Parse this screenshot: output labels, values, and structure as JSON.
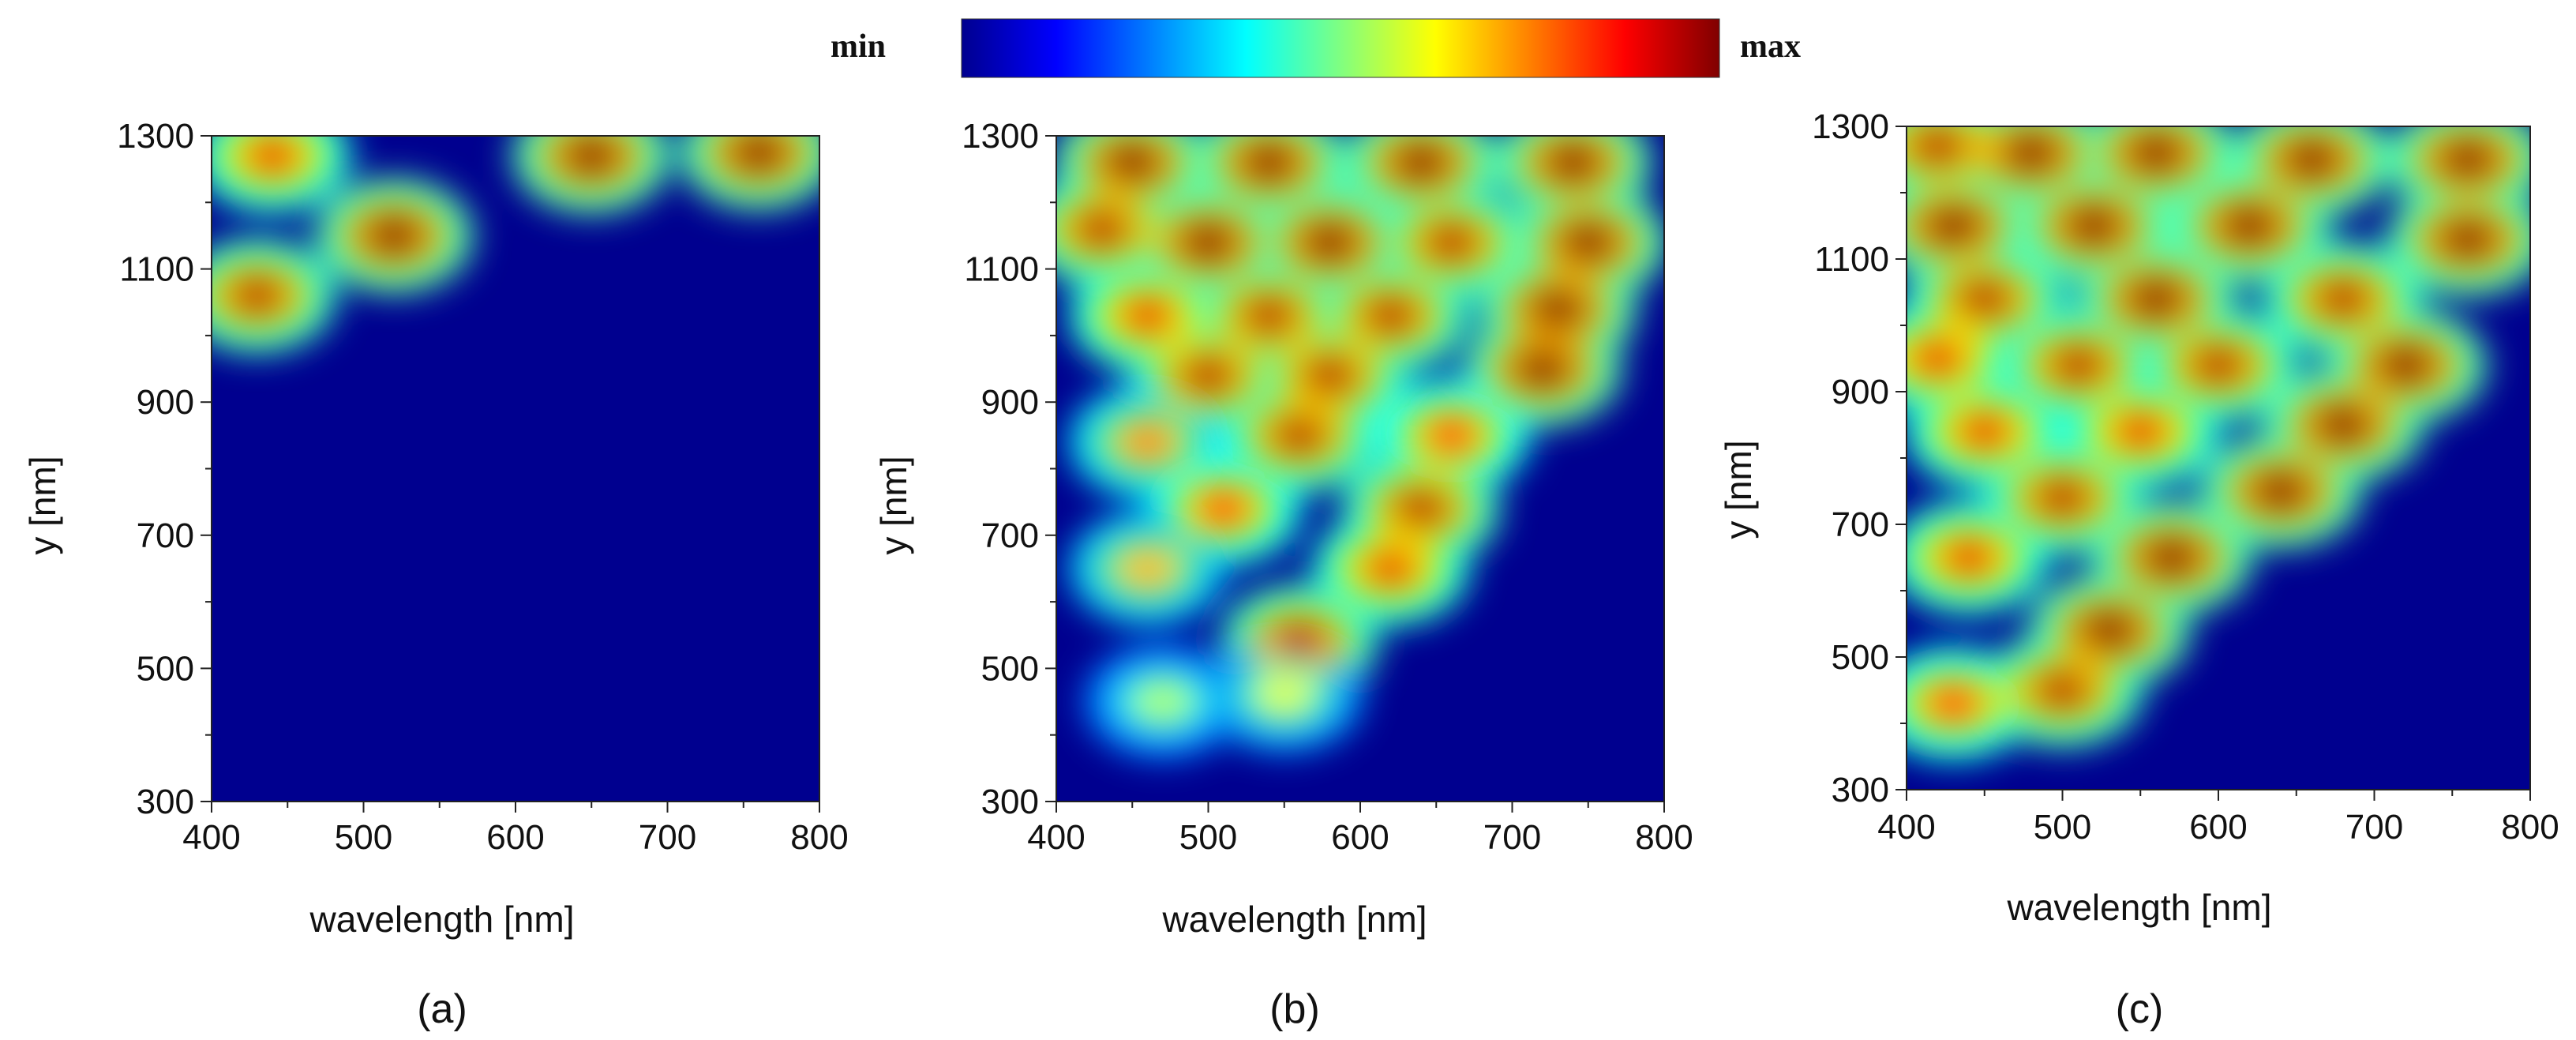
{
  "colorbar": {
    "min_label": "min",
    "max_label": "max",
    "colors": [
      "#00008f",
      "#0000ff",
      "#0080ff",
      "#00ffff",
      "#80ff80",
      "#ffff00",
      "#ff8000",
      "#ff0000",
      "#800000"
    ]
  },
  "chart_data": [
    {
      "type": "heatmap",
      "panel_label": "(a)",
      "xlabel": "wavelength [nm]",
      "ylabel": "y [nm]",
      "xlim": [
        400,
        800
      ],
      "ylim": [
        300,
        1300
      ],
      "xticks": [
        400,
        500,
        600,
        700,
        800
      ],
      "yticks": [
        300,
        500,
        700,
        900,
        1100,
        1300
      ],
      "xtick_labels": [
        "400",
        "500",
        "600",
        "700",
        "800"
      ],
      "ytick_labels": [
        "300",
        "500",
        "700",
        "900",
        "1100",
        "1300"
      ],
      "hotspots": [
        {
          "x": 440,
          "y": 1270,
          "value": 0.9
        },
        {
          "x": 520,
          "y": 1150,
          "value": 1.0
        },
        {
          "x": 430,
          "y": 1060,
          "value": 0.95
        },
        {
          "x": 650,
          "y": 1270,
          "value": 1.0
        },
        {
          "x": 760,
          "y": 1275,
          "value": 1.0
        }
      ]
    },
    {
      "type": "heatmap",
      "panel_label": "(b)",
      "xlabel": "wavelength [nm]",
      "ylabel": "y [nm]",
      "xlim": [
        400,
        800
      ],
      "ylim": [
        300,
        1300
      ],
      "xticks": [
        400,
        500,
        600,
        700,
        800
      ],
      "yticks": [
        300,
        500,
        700,
        900,
        1100,
        1300
      ],
      "xtick_labels": [
        "400",
        "500",
        "600",
        "700",
        "800"
      ],
      "ytick_labels": [
        "300",
        "500",
        "700",
        "900",
        "1100",
        "1300"
      ],
      "hotspots": [
        {
          "x": 450,
          "y": 1260,
          "value": 1.0
        },
        {
          "x": 540,
          "y": 1260,
          "value": 1.0
        },
        {
          "x": 640,
          "y": 1260,
          "value": 1.0
        },
        {
          "x": 740,
          "y": 1260,
          "value": 1.0
        },
        {
          "x": 430,
          "y": 1160,
          "value": 0.95
        },
        {
          "x": 500,
          "y": 1140,
          "value": 1.0
        },
        {
          "x": 580,
          "y": 1140,
          "value": 1.0
        },
        {
          "x": 660,
          "y": 1140,
          "value": 0.95
        },
        {
          "x": 750,
          "y": 1140,
          "value": 1.0
        },
        {
          "x": 460,
          "y": 1030,
          "value": 0.9
        },
        {
          "x": 540,
          "y": 1030,
          "value": 0.95
        },
        {
          "x": 620,
          "y": 1030,
          "value": 0.95
        },
        {
          "x": 730,
          "y": 1040,
          "value": 1.0
        },
        {
          "x": 500,
          "y": 940,
          "value": 0.95
        },
        {
          "x": 580,
          "y": 940,
          "value": 0.95
        },
        {
          "x": 720,
          "y": 950,
          "value": 1.0
        },
        {
          "x": 460,
          "y": 840,
          "value": 0.75
        },
        {
          "x": 560,
          "y": 850,
          "value": 0.95
        },
        {
          "x": 660,
          "y": 850,
          "value": 0.85
        },
        {
          "x": 510,
          "y": 740,
          "value": 0.85
        },
        {
          "x": 640,
          "y": 740,
          "value": 0.95
        },
        {
          "x": 460,
          "y": 650,
          "value": 0.7
        },
        {
          "x": 620,
          "y": 650,
          "value": 0.9
        },
        {
          "x": 560,
          "y": 540,
          "value": 0.95
        },
        {
          "x": 470,
          "y": 450,
          "value": 0.55
        },
        {
          "x": 550,
          "y": 460,
          "value": 0.6
        }
      ]
    },
    {
      "type": "heatmap",
      "panel_label": "(c)",
      "xlabel": "wavelength [nm]",
      "ylabel": "y [nm]",
      "xlim": [
        400,
        800
      ],
      "ylim": [
        300,
        1300
      ],
      "xticks": [
        400,
        500,
        600,
        700,
        800
      ],
      "yticks": [
        300,
        500,
        700,
        900,
        1100,
        1300
      ],
      "xtick_labels": [
        "400",
        "500",
        "600",
        "700",
        "800"
      ],
      "ytick_labels": [
        "300",
        "500",
        "700",
        "900",
        "1100",
        "1300"
      ],
      "hotspots": [
        {
          "x": 420,
          "y": 1270,
          "value": 0.95
        },
        {
          "x": 480,
          "y": 1260,
          "value": 1.0
        },
        {
          "x": 560,
          "y": 1260,
          "value": 1.0
        },
        {
          "x": 660,
          "y": 1250,
          "value": 1.0
        },
        {
          "x": 760,
          "y": 1250,
          "value": 1.0
        },
        {
          "x": 430,
          "y": 1150,
          "value": 1.0
        },
        {
          "x": 520,
          "y": 1150,
          "value": 1.0
        },
        {
          "x": 620,
          "y": 1150,
          "value": 1.0
        },
        {
          "x": 760,
          "y": 1130,
          "value": 1.0
        },
        {
          "x": 450,
          "y": 1040,
          "value": 0.95
        },
        {
          "x": 560,
          "y": 1040,
          "value": 1.0
        },
        {
          "x": 680,
          "y": 1040,
          "value": 0.95
        },
        {
          "x": 420,
          "y": 950,
          "value": 0.9
        },
        {
          "x": 510,
          "y": 940,
          "value": 0.95
        },
        {
          "x": 600,
          "y": 940,
          "value": 0.95
        },
        {
          "x": 720,
          "y": 940,
          "value": 1.0
        },
        {
          "x": 450,
          "y": 840,
          "value": 0.9
        },
        {
          "x": 550,
          "y": 840,
          "value": 0.9
        },
        {
          "x": 680,
          "y": 850,
          "value": 1.0
        },
        {
          "x": 500,
          "y": 740,
          "value": 0.95
        },
        {
          "x": 640,
          "y": 750,
          "value": 1.0
        },
        {
          "x": 440,
          "y": 650,
          "value": 0.9
        },
        {
          "x": 570,
          "y": 650,
          "value": 1.0
        },
        {
          "x": 530,
          "y": 540,
          "value": 1.0
        },
        {
          "x": 430,
          "y": 430,
          "value": 0.85
        },
        {
          "x": 500,
          "y": 450,
          "value": 0.95
        }
      ]
    }
  ]
}
